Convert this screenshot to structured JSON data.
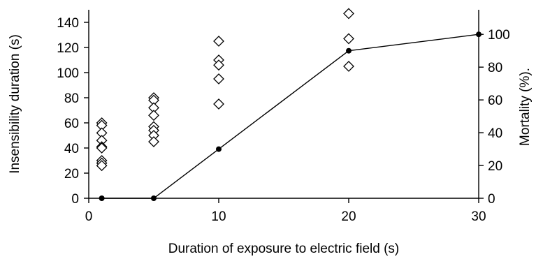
{
  "chart_data": {
    "type": "scatter",
    "title": "",
    "xlabel": "Duration of exposure to electric field (s)",
    "ylabel_left": "Insensibility duration (s)",
    "ylabel_right": "Mortality (%).",
    "x_ticks": [
      "0",
      "10",
      "20",
      "30"
    ],
    "y_left_ticks": [
      "0",
      "20",
      "40",
      "60",
      "80",
      "100",
      "120",
      "140"
    ],
    "y_right_ticks": [
      "0",
      "20",
      "40",
      "60",
      "80",
      "100"
    ],
    "xlim": [
      0,
      30
    ],
    "ylim_left": [
      0,
      150
    ],
    "ylim_right": [
      0,
      115
    ],
    "grid": false,
    "legend": "none",
    "series": [
      {
        "marker": "open-diamond",
        "axis": "left",
        "points": [
          {
            "x": 1,
            "y": 60
          },
          {
            "x": 1,
            "y": 58
          },
          {
            "x": 1,
            "y": 52
          },
          {
            "x": 1,
            "y": 46
          },
          {
            "x": 1,
            "y": 41
          },
          {
            "x": 1,
            "y": 40
          },
          {
            "x": 1,
            "y": 30
          },
          {
            "x": 1,
            "y": 28
          },
          {
            "x": 1,
            "y": 26
          },
          {
            "x": 5,
            "y": 80
          },
          {
            "x": 5,
            "y": 78
          },
          {
            "x": 5,
            "y": 72
          },
          {
            "x": 5,
            "y": 66
          },
          {
            "x": 5,
            "y": 57
          },
          {
            "x": 5,
            "y": 54
          },
          {
            "x": 5,
            "y": 50
          },
          {
            "x": 5,
            "y": 45
          },
          {
            "x": 10,
            "y": 125
          },
          {
            "x": 10,
            "y": 110
          },
          {
            "x": 10,
            "y": 106
          },
          {
            "x": 10,
            "y": 95
          },
          {
            "x": 10,
            "y": 75
          },
          {
            "x": 20,
            "y": 147
          },
          {
            "x": 20,
            "y": 127
          },
          {
            "x": 20,
            "y": 105
          }
        ]
      },
      {
        "marker": "filled-circle",
        "line": true,
        "axis": "right",
        "points": [
          {
            "x": 1,
            "y": 0
          },
          {
            "x": 5,
            "y": 0
          },
          {
            "x": 10,
            "y": 30
          },
          {
            "x": 20,
            "y": 90
          },
          {
            "x": 30,
            "y": 100
          }
        ]
      }
    ],
    "colors": {
      "axis": "#000000",
      "marker": "#000000"
    }
  }
}
